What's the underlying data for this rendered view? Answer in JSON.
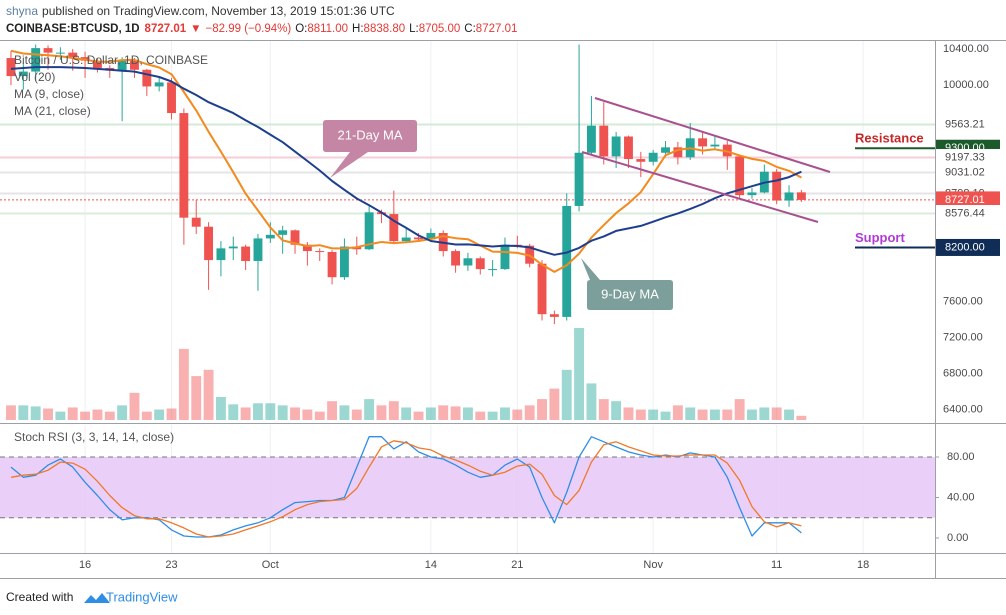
{
  "header": {
    "author": "shyna",
    "published": "published on TradingView.com, November 13, 2019 15:01:36 UTC",
    "symbol": "COINBASE:BTCUSD, 1D",
    "last": "8727.01",
    "arrow": "▼",
    "change": "−82.99 (−0.94%)",
    "ohlc": [
      {
        "key": "O:",
        "value": "8811.00"
      },
      {
        "key": "H:",
        "value": "8838.80"
      },
      {
        "key": "L:",
        "value": "8705.00"
      },
      {
        "key": "C:",
        "value": "8727.01"
      }
    ]
  },
  "chart_data": {
    "type": "candlestick",
    "title": "Bitcoin / U.S. Dollar, 1D, COINBASE",
    "categories": [
      null,
      null,
      null,
      null,
      null,
      null,
      "16",
      null,
      null,
      null,
      null,
      null,
      null,
      "23",
      null,
      null,
      null,
      null,
      null,
      null,
      null,
      "Oct",
      null,
      null,
      null,
      null,
      null,
      null,
      null,
      null,
      null,
      null,
      null,
      null,
      "14",
      null,
      null,
      null,
      null,
      null,
      null,
      "21",
      null,
      null,
      null,
      null,
      null,
      null,
      null,
      null,
      null,
      null,
      "Nov",
      null,
      null,
      null,
      null,
      null,
      null,
      null,
      null,
      null,
      "11",
      null,
      null,
      null,
      null,
      null,
      null,
      "18"
    ],
    "open": [
      10300,
      10100,
      10150,
      10410,
      10360,
      10360,
      10310,
      10270,
      10190,
      10160,
      10280,
      10170,
      9985,
      10030,
      9690,
      8530,
      8430,
      8060,
      8190,
      8210,
      8050,
      8300,
      8340,
      8390,
      8230,
      8160,
      8150,
      7870,
      8210,
      8180,
      8590,
      8570,
      8270,
      8310,
      8290,
      8360,
      8160,
      8000,
      8080,
      7960,
      7960,
      8230,
      8220,
      8020,
      7460,
      7430,
      8660,
      9250,
      9550,
      9210,
      9430,
      9180,
      9150,
      9250,
      9310,
      9200,
      9410,
      9320,
      9340,
      9210,
      8780,
      8810,
      9040,
      8720,
      8811,
      null,
      null,
      null,
      null,
      null
    ],
    "high": [
      10380,
      10250,
      10450,
      10440,
      10420,
      10400,
      10370,
      10300,
      10220,
      10310,
      10300,
      10180,
      10080,
      10080,
      9740,
      8730,
      8480,
      8270,
      8320,
      8230,
      8350,
      8480,
      8440,
      8400,
      8260,
      8190,
      8170,
      8300,
      8320,
      8660,
      8620,
      8830,
      8420,
      8360,
      8410,
      8390,
      8180,
      8140,
      8100,
      8060,
      8310,
      8330,
      8240,
      8060,
      7500,
      8800,
      10450,
      9880,
      9810,
      9480,
      9440,
      9260,
      9280,
      9380,
      9370,
      9580,
      9480,
      9440,
      9380,
      9230,
      8860,
      9120,
      9070,
      8890,
      8838.8,
      null,
      null,
      null,
      null,
      null
    ],
    "low": [
      10000,
      9950,
      10050,
      10170,
      10280,
      10160,
      10080,
      10140,
      10080,
      9600,
      10080,
      9880,
      9930,
      9620,
      8230,
      8350,
      7730,
      7880,
      8060,
      7950,
      7720,
      8250,
      8130,
      8130,
      8000,
      8050,
      7790,
      7840,
      8120,
      8170,
      8470,
      8240,
      8260,
      8280,
      8260,
      8100,
      7920,
      7940,
      7900,
      7880,
      7950,
      8190,
      7980,
      7390,
      7350,
      7390,
      8600,
      9220,
      9120,
      9080,
      9080,
      8980,
      9110,
      9200,
      9120,
      9170,
      9230,
      9280,
      9060,
      8730,
      8740,
      8800,
      8680,
      8650,
      8705,
      null,
      null,
      null,
      null,
      null
    ],
    "close": [
      10100,
      10150,
      10410,
      10360,
      10360,
      10310,
      10270,
      10190,
      10160,
      10280,
      10170,
      9985,
      10030,
      9690,
      8530,
      8430,
      8060,
      8190,
      8210,
      8050,
      8300,
      8340,
      8390,
      8230,
      8160,
      8150,
      7870,
      8210,
      8180,
      8590,
      8570,
      8270,
      8310,
      8290,
      8360,
      8160,
      8000,
      8080,
      7960,
      7960,
      8230,
      8220,
      8020,
      7460,
      7430,
      8660,
      9250,
      9550,
      9210,
      9430,
      9180,
      9150,
      9250,
      9310,
      9200,
      9410,
      9320,
      9340,
      9210,
      8780,
      8810,
      9040,
      8720,
      8810,
      8727.01,
      null,
      null,
      null,
      null,
      null
    ],
    "up_color": "#26a69a",
    "down_color": "#ef5350",
    "volume": {
      "name": "Vol (20)",
      "values": [
        14,
        14,
        13,
        11,
        8,
        12,
        8,
        10,
        8,
        14,
        26,
        8,
        10,
        11,
        68,
        42,
        48,
        22,
        15,
        12,
        16,
        16,
        14,
        12,
        10,
        8,
        18,
        14,
        10,
        20,
        14,
        18,
        12,
        8,
        12,
        14,
        13,
        12,
        8,
        8,
        12,
        10,
        14,
        20,
        30,
        48,
        88,
        35,
        20,
        18,
        12,
        10,
        10,
        8,
        14,
        12,
        10,
        10,
        10,
        20,
        10,
        12,
        12,
        10,
        4,
        null,
        null,
        null,
        null,
        null
      ]
    },
    "series": [
      {
        "name": "MA (9, close)",
        "color": "#f28a1e",
        "values": [
          10380,
          10350,
          10340,
          10330,
          10320,
          10300,
          10280,
          10260,
          10257,
          10277,
          10279,
          10232,
          10195,
          10121,
          9923,
          9719,
          9482,
          9263,
          9033,
          8797,
          8610,
          8422,
          8278,
          8245,
          8215,
          8225,
          8189,
          8189,
          8203,
          8235,
          8261,
          8248,
          8257,
          8271,
          8294,
          8326,
          8303,
          8292,
          8222,
          8154,
          8150,
          8140,
          8110,
          8010,
          7929,
          8002,
          8132,
          8309,
          8448,
          8581,
          8688,
          8814,
          9013,
          9222,
          9282,
          9300,
          9274,
          9288,
          9264,
          9220,
          9182,
          9159,
          9093,
          9050,
          8974,
          null,
          null,
          null,
          null,
          null
        ]
      },
      {
        "name": "MA (21, close)",
        "color": "#1e3f8e",
        "values": [
          10180,
          10190,
          10200,
          10200,
          10200,
          10195,
          10190,
          10180,
          10170,
          10160,
          10150,
          10120,
          10090,
          10040,
          9960,
          9890,
          9810,
          9750,
          9690,
          9610,
          9535,
          9451,
          9367,
          9263,
          9158,
          9053,
          8937,
          8839,
          8743,
          8668,
          8587,
          8497,
          8417,
          8334,
          8271,
          8253,
          8233,
          8234,
          8223,
          8211,
          8220,
          8216,
          8201,
          8157,
          8119,
          8143,
          8195,
          8275,
          8323,
          8383,
          8411,
          8439,
          8486,
          8534,
          8577,
          8627,
          8682,
          8746,
          8800,
          8839,
          8879,
          8918,
          8942,
          8980,
          9040,
          null,
          null,
          null,
          null,
          null
        ]
      }
    ],
    "ylim": [
      6287,
      10500
    ],
    "yticks": [
      {
        "value": 10400,
        "label": "10400.00"
      },
      {
        "value": 10000,
        "label": "10000.00"
      },
      {
        "value": 7600,
        "label": "7600.00"
      },
      {
        "value": 7200,
        "label": "7200.00"
      },
      {
        "value": 6800,
        "label": "6800.00"
      },
      {
        "value": 6400,
        "label": "6400.00"
      }
    ],
    "grid": true,
    "price_tags": [
      {
        "value": 9563.21,
        "label": "9563.21",
        "color": "#ffffff",
        "line_color": "#cfe8d2"
      },
      {
        "value": 9300,
        "label": "9300.00",
        "color": "#1d5a2b",
        "line_color": "#1d5a2b"
      },
      {
        "value": 9197.33,
        "label": "9197.33",
        "color": "#ffffff",
        "line_color": "#f3c9d3"
      },
      {
        "value": 9031.02,
        "label": "9031.02",
        "color": "#ffffff",
        "line_color": "#e3e3e3"
      },
      {
        "value": 8798.19,
        "label": "8798.19",
        "color": "#ffffff",
        "line_color": "#e3e3e3"
      },
      {
        "value": 8727.01,
        "label": "8727.01",
        "color": "#ef5350",
        "line_color": "#ef5350"
      },
      {
        "value": 8576.44,
        "label": "8576.44",
        "color": "#ffffff",
        "line_color": "#d6ecd8"
      },
      {
        "value": 8200,
        "label": "8200.00",
        "color": "#0f2d57",
        "line_color": "#0f2d57"
      }
    ],
    "levels": [
      {
        "text": "Resistance",
        "value": 9300,
        "color": "#c62828",
        "line_color": "#1d5a2b"
      },
      {
        "text": "Support",
        "value": 8200,
        "color": "#b13bd6",
        "line_color": "#0f2d57"
      }
    ],
    "callouts": [
      "21-Day MA",
      "9-Day MA"
    ],
    "stoch": {
      "type": "line",
      "title": "Stoch RSI (3, 3, 14, 14, close)",
      "series": [
        {
          "name": "K",
          "color": "#2e8ee6",
          "values": [
            70,
            60,
            62,
            72,
            78,
            70,
            55,
            42,
            28,
            18,
            20,
            20,
            18,
            8,
            2,
            1,
            1,
            3,
            8,
            12,
            15,
            20,
            28,
            35,
            36,
            37,
            37,
            40,
            70,
            100,
            100,
            88,
            95,
            85,
            80,
            78,
            72,
            65,
            60,
            62,
            72,
            78,
            70,
            40,
            15,
            45,
            80,
            100,
            95,
            90,
            85,
            82,
            80,
            82,
            80,
            84,
            82,
            80,
            60,
            30,
            2,
            15,
            15,
            15,
            5,
            null,
            null,
            null,
            null,
            null
          ]
        },
        {
          "name": "D",
          "color": "#f0782a",
          "values": [
            60,
            62,
            63,
            67,
            75,
            74,
            68,
            56,
            42,
            30,
            22,
            19,
            19,
            15,
            10,
            4,
            1,
            2,
            4,
            8,
            12,
            16,
            21,
            28,
            33,
            36,
            37,
            38,
            49,
            70,
            90,
            96,
            94,
            89,
            87,
            81,
            77,
            72,
            66,
            62,
            65,
            71,
            73,
            63,
            42,
            33,
            47,
            75,
            92,
            95,
            90,
            86,
            82,
            81,
            81,
            82,
            82,
            82,
            74,
            57,
            31,
            16,
            11,
            15,
            12,
            null,
            null,
            null,
            null,
            null
          ]
        }
      ],
      "ylim": [
        -14.8,
        111.6
      ],
      "yticks": [
        {
          "value": 80,
          "label": "80.00"
        },
        {
          "value": 40,
          "label": "40.00"
        },
        {
          "value": 0,
          "label": "0.00"
        }
      ],
      "band": [
        20,
        80
      ],
      "band_color": "#e6c8f7"
    }
  },
  "footer": {
    "text": "Created with",
    "brand": "TradingView"
  }
}
